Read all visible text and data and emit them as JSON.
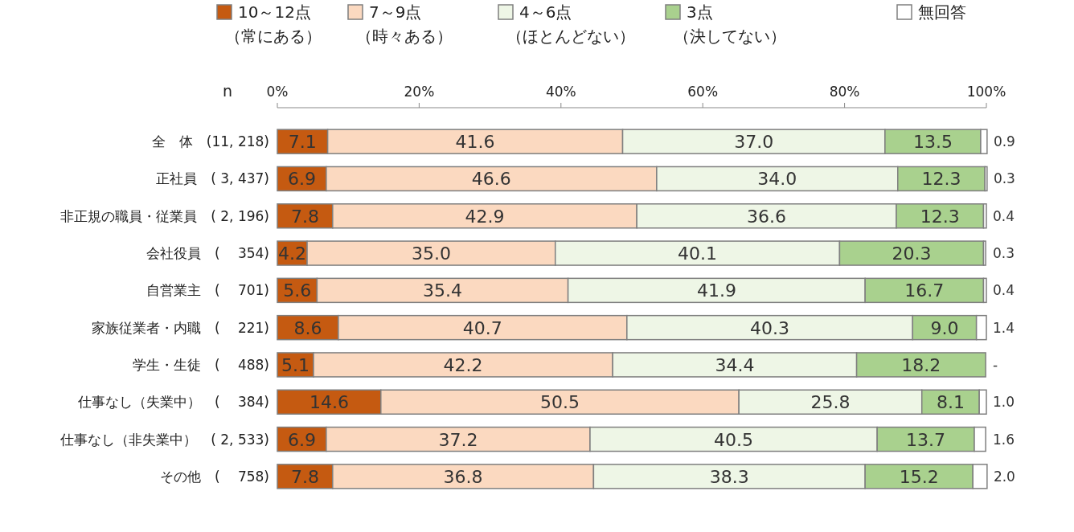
{
  "chart_data": {
    "type": "bar",
    "orientation": "horizontal",
    "stacked": true,
    "legend": "top",
    "grid": false,
    "categories": [
      "全　体　(11, 218)",
      "正社員　( 3, 437)",
      "非正規の職員・従業員　( 2, 196)",
      "会社役員　(　 354)",
      "自営業主　(　 701)",
      "家族従業者・内職　(　 221)",
      "学生・生徒　(　 488)",
      "仕事なし（失業中）　(　 384)",
      "仕事なし（非失業中）　( 2, 533)",
      "その他　(　 758)"
    ],
    "xlim": [
      0,
      100
    ],
    "xticks": [
      {
        "value": 0,
        "label": "0%"
      },
      {
        "value": 20,
        "label": "20%"
      },
      {
        "value": 40,
        "label": "40%"
      },
      {
        "value": 60,
        "label": "60%"
      },
      {
        "value": 80,
        "label": "80%"
      },
      {
        "value": 100,
        "label": "100%"
      }
    ],
    "annotations": [
      "n"
    ],
    "series": [
      {
        "name": "10～12点（常にある）",
        "color": "#c55a11",
        "values": [
          7.1,
          6.9,
          7.8,
          4.2,
          5.6,
          8.6,
          5.1,
          14.6,
          6.9,
          7.8
        ],
        "value_labels": [
          "7.1",
          "6.9",
          "7.8",
          "4.2",
          "5.6",
          "8.6",
          "5.1",
          "14.6",
          "6.9",
          "7.8"
        ]
      },
      {
        "name": "7～9点（時々ある）",
        "color": "#fbd9c0",
        "values": [
          41.6,
          46.6,
          42.9,
          35.0,
          35.4,
          40.7,
          42.2,
          50.5,
          37.2,
          36.8
        ],
        "value_labels": [
          "41.6",
          "46.6",
          "42.9",
          "35.0",
          "35.4",
          "40.7",
          "42.2",
          "50.5",
          "37.2",
          "36.8"
        ]
      },
      {
        "name": "4～6点（ほとんどない）",
        "color": "#eef6e6",
        "values": [
          37.0,
          34.0,
          36.6,
          40.1,
          41.9,
          40.3,
          34.4,
          25.8,
          40.5,
          38.3
        ],
        "value_labels": [
          "37.0",
          "34.0",
          "36.6",
          "40.1",
          "41.9",
          "40.3",
          "34.4",
          "25.8",
          "40.5",
          "38.3"
        ]
      },
      {
        "name": "3点（決してない）",
        "color": "#a9d18e",
        "values": [
          13.5,
          12.3,
          12.3,
          20.3,
          16.7,
          9.0,
          18.2,
          8.1,
          13.7,
          15.2
        ],
        "value_labels": [
          "13.5",
          "12.3",
          "12.3",
          "20.3",
          "16.7",
          "9.0",
          "18.2",
          "8.1",
          "13.7",
          "15.2"
        ]
      },
      {
        "name": "無回答",
        "color": "#ffffff",
        "values": [
          0.9,
          0.3,
          0.4,
          0.3,
          0.4,
          1.4,
          0,
          1.0,
          1.6,
          2.0
        ],
        "value_labels": [
          "0.9",
          "0.3",
          "0.4",
          "0.3",
          "0.4",
          "1.4",
          "-",
          "1.0",
          "1.6",
          "2.0"
        ]
      }
    ]
  }
}
